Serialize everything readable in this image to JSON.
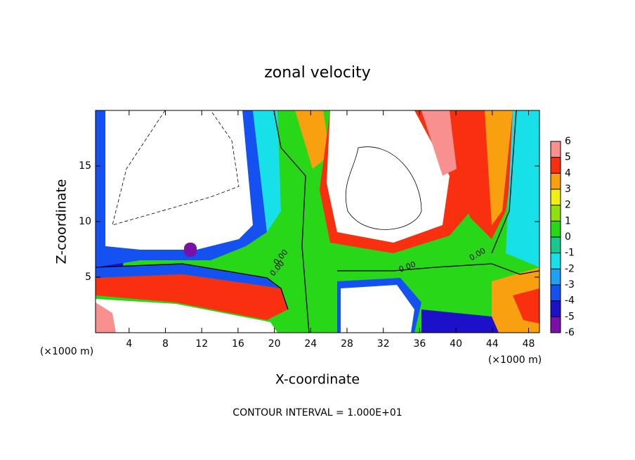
{
  "chart_data": {
    "type": "contour",
    "title": "zonal velocity",
    "x_label": "X-coordinate",
    "y_label": "Z-coordinate",
    "x_unit_label": "(×1000 m)",
    "x_unit_label_right": "(×1000 m)",
    "footer": "CONTOUR INTERVAL = 1.000E+01",
    "contour_labels": [
      "0.00",
      "0.00",
      "0.00",
      "0.00"
    ],
    "xlim": [
      0.3,
      49.2
    ],
    "ylim": [
      0,
      20
    ],
    "xticks": [
      4,
      8,
      12,
      16,
      20,
      24,
      28,
      32,
      36,
      40,
      44,
      48
    ],
    "yticks": [
      5,
      10,
      15
    ],
    "colorbar": {
      "lim": [
        -6,
        6
      ],
      "ticks": [
        -6,
        -5,
        -4,
        -3,
        -2,
        -1,
        0,
        1,
        2,
        3,
        4,
        5,
        6
      ],
      "colors": [
        "#7a10a8",
        "#1c10c8",
        "#1550f0",
        "#1fa0f0",
        "#18e0e8",
        "#18c890",
        "#28d818",
        "#90e010",
        "#f0f010",
        "#f8a010",
        "#f83010",
        "#f89090"
      ]
    }
  }
}
